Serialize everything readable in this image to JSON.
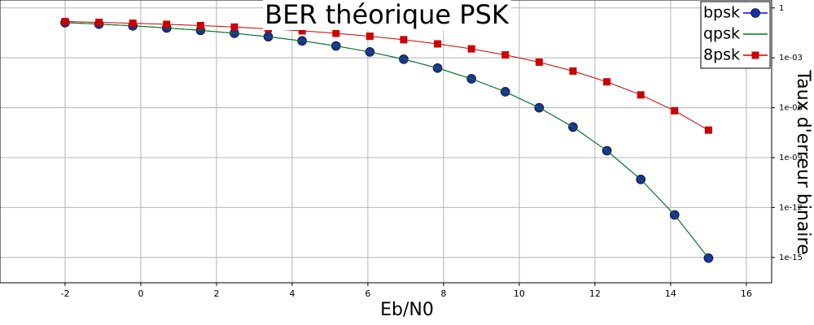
{
  "chart_data": {
    "type": "line",
    "title": "BER théorique PSK",
    "x_label": "Eb/N0",
    "y_label": "Taux d'erreur binaire",
    "x": [
      -2,
      -1.105,
      -0.211,
      0.684,
      1.579,
      2.474,
      3.368,
      4.263,
      5.158,
      6.053,
      6.947,
      7.842,
      8.737,
      9.632,
      10.526,
      11.421,
      12.316,
      13.211,
      14.105,
      15
    ],
    "series": [
      {
        "name": "bpsk",
        "color": "#0000ff",
        "marker": "circle",
        "marker_color": "#1a2fa0",
        "values": [
          0.1306,
          0.1066,
          0.0838,
          0.063,
          0.0449,
          0.03,
          0.0186,
          0.01044,
          0.00522,
          0.00226,
          0.000825,
          0.000243,
          5.5e-05,
          9.1e-06,
          1e-06,
          6.9e-08,
          2.6e-09,
          4.9e-11,
          3.6e-13,
          9.1e-16
        ]
      },
      {
        "name": "qpsk",
        "color": "#008000",
        "values": [
          0.1306,
          0.1066,
          0.0838,
          0.063,
          0.0449,
          0.03,
          0.0186,
          0.01044,
          0.00522,
          0.00226,
          0.000825,
          0.000243,
          5.5e-05,
          9.1e-06,
          1e-06,
          6.9e-08,
          2.6e-09,
          4.9e-11,
          3.6e-13,
          9.1e-16
        ]
      },
      {
        "name": "8psk",
        "color": "#cc0000",
        "marker": "square",
        "marker_color": "#cc0000",
        "values": [
          0.152,
          0.1365,
          0.12,
          0.1035,
          0.087,
          0.0708,
          0.0557,
          0.0419,
          0.0299,
          0.0199,
          0.0123,
          0.0069,
          0.00346,
          0.0015,
          0.00055,
          0.00016,
          3.6e-05,
          5.9e-06,
          6.6e-07,
          4.5e-08
        ]
      }
    ],
    "xlim": [
      -3.72,
      16.67
    ],
    "xticks": [
      -2,
      0,
      2,
      4,
      6,
      8,
      10,
      12,
      14,
      16
    ],
    "ylim": [
      3,
      3e-17
    ],
    "y_scale": "log",
    "y_axis_side": "right",
    "yticks": [
      1,
      {
        "value": 0.001,
        "label": "1e-03"
      },
      {
        "value": 1e-06,
        "label": "1e-06"
      },
      {
        "value": 1e-09,
        "label": "1e-09"
      },
      {
        "value": 1e-12,
        "label": "1e-12"
      },
      {
        "value": 1e-15,
        "label": "1e-15"
      }
    ],
    "grid": true,
    "legend": "top-right"
  }
}
